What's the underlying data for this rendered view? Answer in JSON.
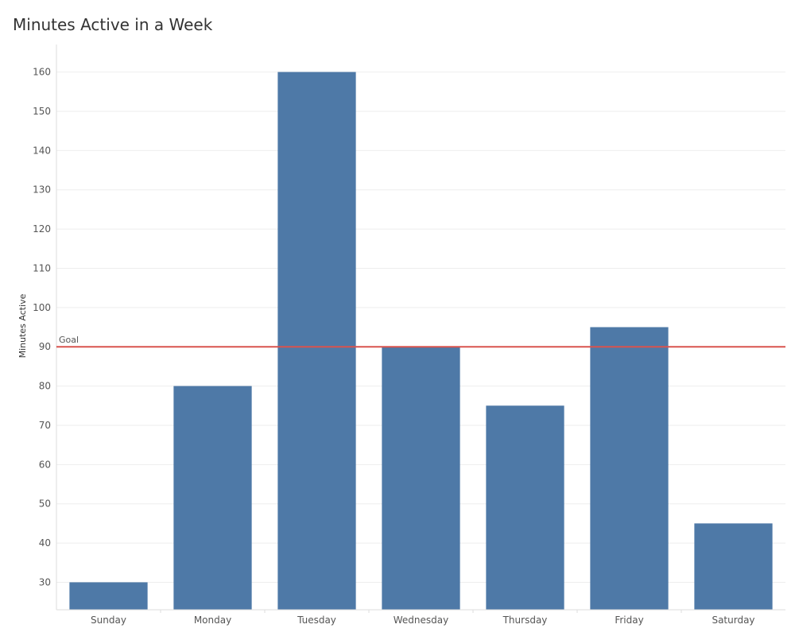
{
  "chart_data": {
    "type": "bar",
    "title": "Minutes Active in a Week",
    "xlabel": "",
    "ylabel": "Minutes Active",
    "categories": [
      "Sunday",
      "Monday",
      "Tuesday",
      "Wednesday",
      "Thursday",
      "Friday",
      "Saturday"
    ],
    "values": [
      30,
      80,
      160,
      90,
      75,
      95,
      45
    ],
    "ylim": [
      23,
      167
    ],
    "yticks": [
      30,
      40,
      50,
      60,
      70,
      80,
      90,
      100,
      110,
      120,
      130,
      140,
      150,
      160
    ],
    "reference_line": {
      "label": "Goal",
      "value": 90
    },
    "grid": true,
    "colors": {
      "bar": "#4e79a7",
      "reference_line": "#d9534f",
      "grid": "#eeeeee",
      "axis": "#dddddd"
    }
  }
}
